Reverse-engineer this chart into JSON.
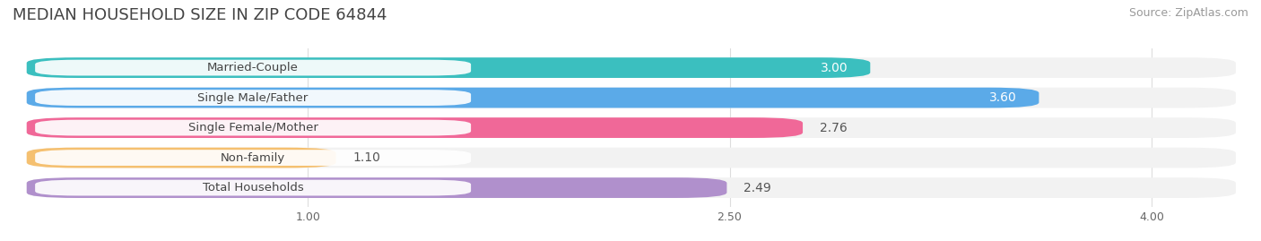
{
  "title": "MEDIAN HOUSEHOLD SIZE IN ZIP CODE 64844",
  "source": "Source: ZipAtlas.com",
  "categories": [
    "Married-Couple",
    "Single Male/Father",
    "Single Female/Mother",
    "Non-family",
    "Total Households"
  ],
  "values": [
    3.0,
    3.6,
    2.76,
    1.1,
    2.49
  ],
  "bar_colors": [
    "#3BBFBF",
    "#5BAAE8",
    "#F06898",
    "#F5C070",
    "#B090CC"
  ],
  "row_bg_colors": [
    "#F0F0F0",
    "#F0F0F0",
    "#F0F0F0",
    "#F0F0F0",
    "#F0F0F0"
  ],
  "value_label_inside": [
    true,
    true,
    false,
    false,
    false
  ],
  "xlim_min": 0.0,
  "xlim_max": 4.3,
  "xticks": [
    1.0,
    2.5,
    4.0
  ],
  "xtick_labels": [
    "1.00",
    "2.50",
    "4.00"
  ],
  "title_fontsize": 13,
  "source_fontsize": 9,
  "bar_label_fontsize": 10,
  "category_fontsize": 9.5,
  "tick_fontsize": 9,
  "fig_width": 14.06,
  "fig_height": 2.69,
  "background_color": "#FFFFFF",
  "row_bg_color": "#F2F2F2",
  "grid_color": "#DDDDDD"
}
